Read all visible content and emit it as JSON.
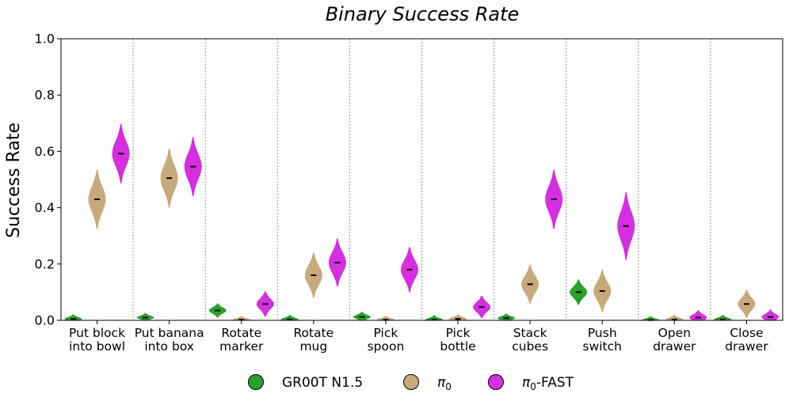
{
  "chart_data": {
    "type": "violin",
    "title": "Binary Success Rate",
    "xlabel": "",
    "ylabel": "Success Rate",
    "ylim": [
      0.0,
      1.0
    ],
    "yticks": [
      "0.0",
      "0.2",
      "0.4",
      "0.6",
      "0.8",
      "1.0"
    ],
    "categories": [
      [
        "Put block",
        "into bowl"
      ],
      [
        "Put banana",
        "into box"
      ],
      [
        "Rotate",
        "marker"
      ],
      [
        "Rotate",
        "mug"
      ],
      [
        "Pick",
        "spoon"
      ],
      [
        "Pick",
        "bottle"
      ],
      [
        "Stack",
        "cubes"
      ],
      [
        "Push",
        "switch"
      ],
      [
        "Open",
        "drawer"
      ],
      [
        "Close",
        "drawer"
      ]
    ],
    "series": [
      {
        "name": "GR00T N1.5",
        "color": "#2ca02c",
        "values": [
          0.005,
          0.01,
          0.035,
          0.003,
          0.012,
          0.002,
          0.008,
          0.1,
          0.001,
          0.003
        ],
        "spread": [
          0.03,
          0.03,
          0.05,
          0.03,
          0.035,
          0.03,
          0.03,
          0.09,
          0.025,
          0.03
        ]
      },
      {
        "name": "π₀",
        "legend_main": "π",
        "legend_sub": "0",
        "color": "#c8a97a",
        "values": [
          0.43,
          0.505,
          0.002,
          0.16,
          0.002,
          0.005,
          0.128,
          0.104,
          0.003,
          0.058
        ],
        "spread": [
          0.21,
          0.21,
          0.025,
          0.16,
          0.025,
          0.03,
          0.14,
          0.15,
          0.03,
          0.1
        ]
      },
      {
        "name": "π₀-FAST",
        "legend_main": "π",
        "legend_sub": "0",
        "legend_suffix": "-FAST",
        "color": "#d62ee0",
        "values": [
          0.592,
          0.546,
          0.058,
          0.205,
          0.18,
          0.047,
          0.43,
          0.335,
          0.01,
          0.012
        ],
        "spread": [
          0.21,
          0.21,
          0.09,
          0.17,
          0.16,
          0.08,
          0.21,
          0.24,
          0.05,
          0.05
        ]
      }
    ],
    "legend_position": "bottom"
  }
}
